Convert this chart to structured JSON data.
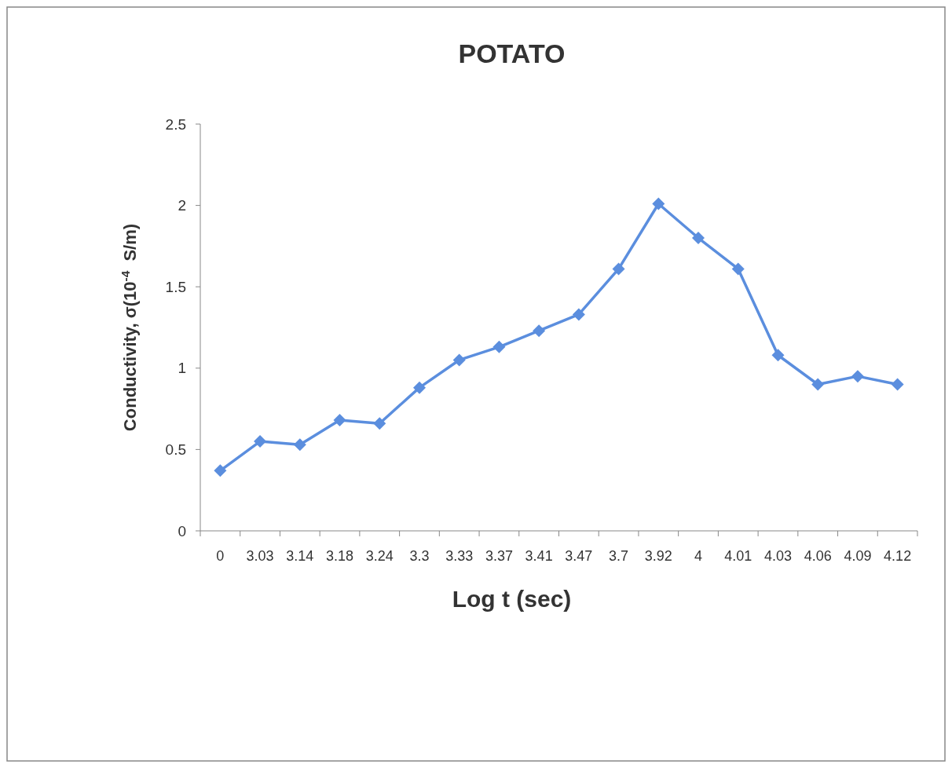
{
  "chart_data": {
    "type": "line",
    "title": "POTATO",
    "xlabel": "Log t (sec)",
    "ylabel": "Conductivity, σ(10$^{-4}$  S/m)",
    "categories": [
      "0",
      "3.03",
      "3.14",
      "3.18",
      "3.24",
      "3.3",
      "3.33",
      "3.37",
      "3.41",
      "3.47",
      "3.7",
      "3.92",
      "4",
      "4.01",
      "4.03",
      "4.06",
      "4.09",
      "4.12"
    ],
    "series": [
      {
        "color": "#5b8ede",
        "values": [
          0.37,
          0.55,
          0.53,
          0.68,
          0.66,
          0.88,
          1.05,
          1.13,
          1.23,
          1.33,
          1.61,
          2.01,
          1.8,
          1.61,
          1.08,
          0.9,
          0.95,
          0.9
        ]
      }
    ],
    "ylim": [
      0,
      2.5
    ],
    "yticks": [
      0,
      0.5,
      1,
      1.5,
      2,
      2.5
    ],
    "grid": false,
    "marker": "diamond",
    "line_style": "solid"
  }
}
